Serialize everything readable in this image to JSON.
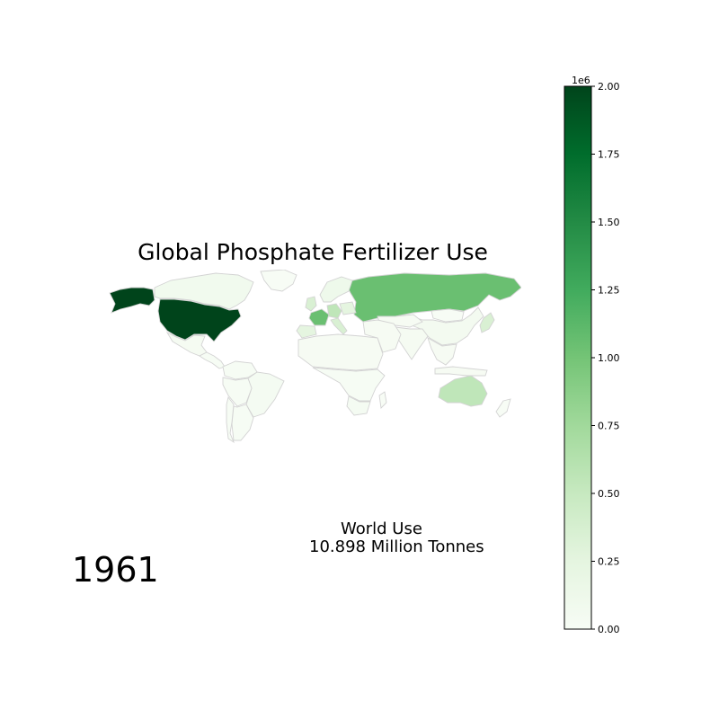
{
  "title": "Global Phosphate Fertilizer Use",
  "year": "1961",
  "world_use": {
    "label": "World Use",
    "value_text": "10.898 Million Tonnes"
  },
  "colorbar": {
    "multiplier": "1e6",
    "ticks": [
      "0.00",
      "0.25",
      "0.50",
      "0.75",
      "1.00",
      "1.25",
      "1.50",
      "1.75",
      "2.00"
    ],
    "range": [
      0,
      2000000
    ],
    "cmap": "Greens",
    "cmap_stops": [
      "#f7fcf5",
      "#e5f5e0",
      "#c7e9c0",
      "#a1d99b",
      "#74c476",
      "#41ab5d",
      "#238b45",
      "#006d2c",
      "#00441b"
    ]
  },
  "map": {
    "projection": "plate-carree",
    "country_border_color": "#d3d3d3",
    "default_fill": "#f7fcf5"
  },
  "chart_data": {
    "type": "heatmap",
    "variable": "phosphate fertilizer use (tonnes)",
    "year": 1961,
    "world_total_million_tonnes": 10.898,
    "regions": [
      {
        "name": "United States",
        "value": 2000000
      },
      {
        "name": "Alaska",
        "value": 2000000
      },
      {
        "name": "Canada",
        "value": 80000
      },
      {
        "name": "Soviet Union",
        "value": 1050000
      },
      {
        "name": "France",
        "value": 1050000
      },
      {
        "name": "Germany",
        "value": 550000
      },
      {
        "name": "United Kingdom",
        "value": 350000
      },
      {
        "name": "Italy",
        "value": 350000
      },
      {
        "name": "Spain",
        "value": 250000
      },
      {
        "name": "Poland",
        "value": 250000
      },
      {
        "name": "Scandinavia",
        "value": 120000
      },
      {
        "name": "Australia",
        "value": 550000
      },
      {
        "name": "China",
        "value": 60000
      },
      {
        "name": "Japan",
        "value": 350000
      },
      {
        "name": "India",
        "value": 30000
      },
      {
        "name": "Mongolia",
        "value": 5000
      },
      {
        "name": "Central Asia",
        "value": 20000
      },
      {
        "name": "Middle East",
        "value": 20000
      },
      {
        "name": "Southeast Asia",
        "value": 20000
      },
      {
        "name": "Indonesia",
        "value": 20000
      },
      {
        "name": "Mexico",
        "value": 30000
      },
      {
        "name": "Central America",
        "value": 10000
      },
      {
        "name": "Brazil",
        "value": 40000
      },
      {
        "name": "Argentina",
        "value": 15000
      },
      {
        "name": "Colombia/Venezuela",
        "value": 15000
      },
      {
        "name": "Peru/Bolivia",
        "value": 10000
      },
      {
        "name": "Chile",
        "value": 15000
      },
      {
        "name": "North Africa",
        "value": 20000
      },
      {
        "name": "Sub-Saharan Africa",
        "value": 10000
      },
      {
        "name": "South Africa",
        "value": 40000
      },
      {
        "name": "Greenland",
        "value": 0
      },
      {
        "name": "New Zealand",
        "value": 0
      },
      {
        "name": "Madagascar",
        "value": 0
      }
    ]
  }
}
